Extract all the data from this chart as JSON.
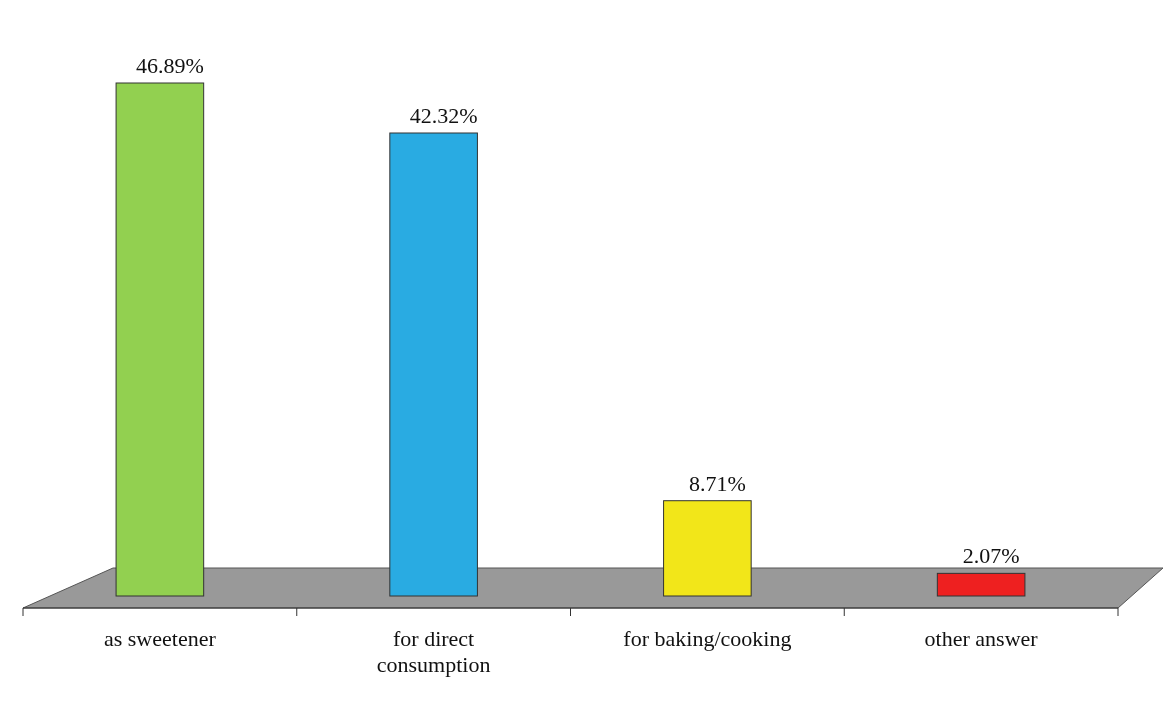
{
  "chart_data": {
    "type": "bar",
    "categories": [
      "as sweetener",
      "for direct consumption",
      "for baking/cooking",
      "other answer"
    ],
    "values": [
      46.89,
      42.32,
      8.71,
      2.07
    ],
    "colors": [
      "#92d050",
      "#29abe2",
      "#f2e619",
      "#ee2020"
    ],
    "value_labels": [
      "46.89%",
      "42.32%",
      "8.71%",
      "2.07%"
    ]
  }
}
